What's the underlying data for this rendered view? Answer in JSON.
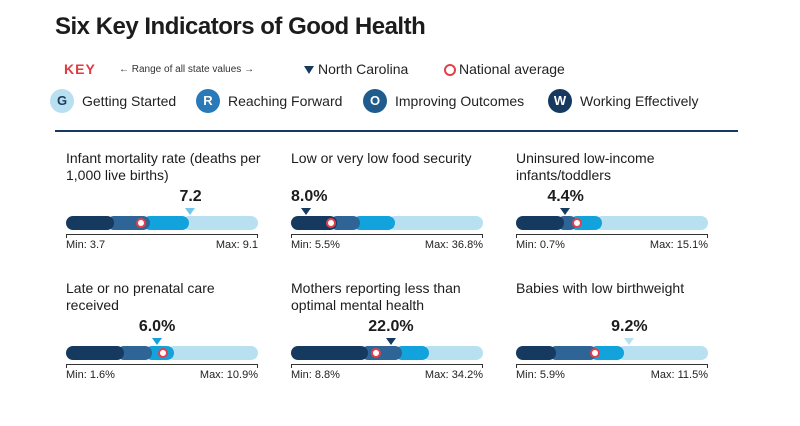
{
  "title": "Six Key Indicators of Good Health",
  "key": {
    "label": "KEY",
    "range_label": "← Range of all state values →",
    "nc_label": "North Carolina",
    "national_label": "National average"
  },
  "stages": [
    {
      "letter": "G",
      "label": "Getting Started",
      "color": "#b9e0f0",
      "text_color": "#1c3a5c"
    },
    {
      "letter": "R",
      "label": "Reaching Forward",
      "color": "#2a79b8",
      "text_color": "#ffffff"
    },
    {
      "letter": "O",
      "label": "Improving Outcomes",
      "color": "#1f5b8c",
      "text_color": "#ffffff"
    },
    {
      "letter": "W",
      "label": "Working Effectively",
      "color": "#163a5f",
      "text_color": "#ffffff"
    }
  ],
  "colors": {
    "dark_navy": "#163a5f",
    "steel_blue": "#2f6496",
    "bright_blue": "#12a3dc",
    "light_blue": "#b9e0f0",
    "national_red": "#e2404a",
    "key_red": "#e23a3f"
  },
  "chart_data": [
    {
      "type": "bar",
      "title": "Infant mortality rate (deaths per 1,000 live births)",
      "value_label": "7.2",
      "nc_value": 7.2,
      "national_value": 5.8,
      "min": 3.7,
      "max": 9.1,
      "min_label": "Min: 3.7",
      "max_label": "Max: 9.1",
      "nc_marker_color": "#71c6ea",
      "segments": [
        {
          "color": "dark_navy",
          "end": 0.25
        },
        {
          "color": "steel_blue",
          "end": 0.44
        },
        {
          "color": "bright_blue",
          "end": 0.64
        },
        {
          "color": "light_blue",
          "end": 1.0
        }
      ]
    },
    {
      "type": "bar",
      "title": "Low or very low food security",
      "value_label": "8.0%",
      "nc_value": 8.0,
      "national_value": 12.0,
      "min": 5.5,
      "max": 36.8,
      "min_label": "Min: 5.5%",
      "max_label": "Max: 36.8%",
      "nc_marker_color": "#163a5f",
      "segments": [
        {
          "color": "dark_navy",
          "end": 0.24
        },
        {
          "color": "steel_blue",
          "end": 0.36
        },
        {
          "color": "bright_blue",
          "end": 0.54
        },
        {
          "color": "light_blue",
          "end": 1.0
        }
      ]
    },
    {
      "type": "bar",
      "title": "Uninsured low-income infants/toddlers",
      "value_label": "4.4%",
      "nc_value": 4.4,
      "national_value": 5.3,
      "min": 0.7,
      "max": 15.1,
      "min_label": "Min: 0.7%",
      "max_label": "Max: 15.1%",
      "nc_marker_color": "#163a5f",
      "segments": [
        {
          "color": "dark_navy",
          "end": 0.25
        },
        {
          "color": "steel_blue",
          "end": 0.32
        },
        {
          "color": "bright_blue",
          "end": 0.45
        },
        {
          "color": "light_blue",
          "end": 1.0
        }
      ]
    },
    {
      "type": "bar",
      "title": "Late or no prenatal care received",
      "value_label": "6.0%",
      "nc_value": 6.0,
      "national_value": 6.3,
      "min": 1.6,
      "max": 10.9,
      "min_label": "Min: 1.6%",
      "max_label": "Max: 10.9%",
      "nc_marker_color": "#12a3dc",
      "segments": [
        {
          "color": "dark_navy",
          "end": 0.3
        },
        {
          "color": "steel_blue",
          "end": 0.45
        },
        {
          "color": "bright_blue",
          "end": 0.56
        },
        {
          "color": "light_blue",
          "end": 1.0
        }
      ]
    },
    {
      "type": "bar",
      "title": "Mothers reporting less than optimal mental health",
      "value_label": "22.0%",
      "nc_value": 22.0,
      "national_value": 20.0,
      "min": 8.8,
      "max": 34.2,
      "min_label": "Min: 8.8%",
      "max_label": "Max: 34.2%",
      "nc_marker_color": "#163a5f",
      "segments": [
        {
          "color": "dark_navy",
          "end": 0.4
        },
        {
          "color": "steel_blue",
          "end": 0.58
        },
        {
          "color": "bright_blue",
          "end": 0.72
        },
        {
          "color": "light_blue",
          "end": 1.0
        }
      ]
    },
    {
      "type": "bar",
      "title": "Babies with low birthweight",
      "value_label": "9.2%",
      "nc_value": 9.2,
      "national_value": 8.2,
      "min": 5.9,
      "max": 11.5,
      "min_label": "Min: 5.9%",
      "max_label": "Max: 11.5%",
      "nc_marker_color": "#b9e0f0",
      "segments": [
        {
          "color": "dark_navy",
          "end": 0.21
        },
        {
          "color": "steel_blue",
          "end": 0.42
        },
        {
          "color": "bright_blue",
          "end": 0.56
        },
        {
          "color": "light_blue",
          "end": 1.0
        }
      ]
    }
  ]
}
